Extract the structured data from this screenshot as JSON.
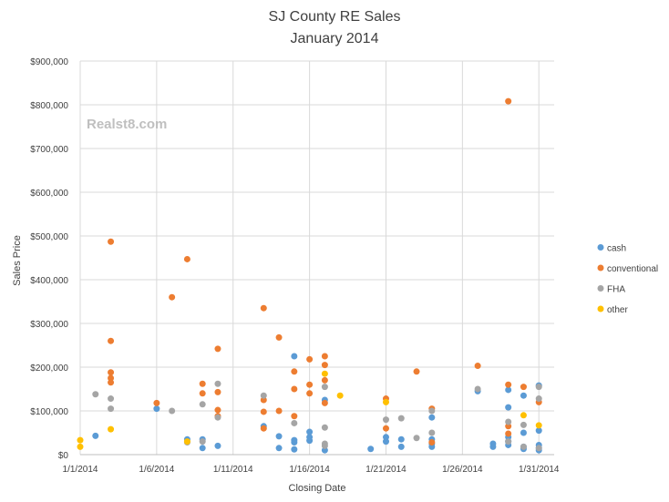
{
  "chart_data": {
    "type": "scatter",
    "title": [
      "SJ County RE Sales",
      "January 2014"
    ],
    "watermark": "Realst8.com",
    "xlabel": "Closing Date",
    "ylabel": "Sales Price",
    "xlim": [
      1,
      32
    ],
    "ylim": [
      0,
      900000
    ],
    "x_ticks": [
      {
        "value": 1,
        "label": "1/1/2014"
      },
      {
        "value": 6,
        "label": "1/6/2014"
      },
      {
        "value": 11,
        "label": "1/11/2014"
      },
      {
        "value": 16,
        "label": "1/16/2014"
      },
      {
        "value": 21,
        "label": "1/21/2014"
      },
      {
        "value": 26,
        "label": "1/26/2014"
      },
      {
        "value": 31,
        "label": "1/31/2014"
      }
    ],
    "y_ticks": [
      {
        "value": 0,
        "label": "$0"
      },
      {
        "value": 100000,
        "label": "$100,000"
      },
      {
        "value": 200000,
        "label": "$200,000"
      },
      {
        "value": 300000,
        "label": "$300,000"
      },
      {
        "value": 400000,
        "label": "$400,000"
      },
      {
        "value": 500000,
        "label": "$500,000"
      },
      {
        "value": 600000,
        "label": "$600,000"
      },
      {
        "value": 700000,
        "label": "$700,000"
      },
      {
        "value": 800000,
        "label": "$800,000"
      },
      {
        "value": 900000,
        "label": "$900,000"
      }
    ],
    "grid": true,
    "legend_position": "right",
    "series": [
      {
        "name": "cash",
        "color": "#5B9BD5",
        "points": [
          [
            2,
            43000
          ],
          [
            6,
            105000
          ],
          [
            8,
            35000
          ],
          [
            9,
            15000
          ],
          [
            9,
            35000
          ],
          [
            10,
            20000
          ],
          [
            13,
            65000
          ],
          [
            14,
            15000
          ],
          [
            14,
            42000
          ],
          [
            15,
            12000
          ],
          [
            15,
            28000
          ],
          [
            15,
            33000
          ],
          [
            15,
            225000
          ],
          [
            16,
            32000
          ],
          [
            16,
            40000
          ],
          [
            16,
            52000
          ],
          [
            17,
            10000
          ],
          [
            17,
            125000
          ],
          [
            20,
            13000
          ],
          [
            21,
            30000
          ],
          [
            21,
            40000
          ],
          [
            22,
            18000
          ],
          [
            22,
            35000
          ],
          [
            24,
            18000
          ],
          [
            24,
            25000
          ],
          [
            24,
            35000
          ],
          [
            24,
            85000
          ],
          [
            27,
            145000
          ],
          [
            28,
            18000
          ],
          [
            28,
            25000
          ],
          [
            29,
            22000
          ],
          [
            29,
            30000
          ],
          [
            29,
            40000
          ],
          [
            29,
            108000
          ],
          [
            29,
            148000
          ],
          [
            30,
            13000
          ],
          [
            30,
            18000
          ],
          [
            30,
            50000
          ],
          [
            30,
            135000
          ],
          [
            31,
            10000
          ],
          [
            31,
            15000
          ],
          [
            31,
            22000
          ],
          [
            31,
            55000
          ],
          [
            31,
            158000
          ]
        ]
      },
      {
        "name": "conventional",
        "color": "#ED7D31",
        "points": [
          [
            3,
            487000
          ],
          [
            3,
            260000
          ],
          [
            3,
            188000
          ],
          [
            3,
            175000
          ],
          [
            3,
            165000
          ],
          [
            6,
            118000
          ],
          [
            7,
            360000
          ],
          [
            8,
            447000
          ],
          [
            9,
            162000
          ],
          [
            9,
            140000
          ],
          [
            10,
            242000
          ],
          [
            10,
            143000
          ],
          [
            10,
            102000
          ],
          [
            10,
            88000
          ],
          [
            13,
            335000
          ],
          [
            13,
            125000
          ],
          [
            13,
            98000
          ],
          [
            13,
            60000
          ],
          [
            14,
            268000
          ],
          [
            14,
            100000
          ],
          [
            15,
            190000
          ],
          [
            15,
            150000
          ],
          [
            15,
            88000
          ],
          [
            16,
            218000
          ],
          [
            16,
            160000
          ],
          [
            16,
            140000
          ],
          [
            17,
            225000
          ],
          [
            17,
            205000
          ],
          [
            17,
            170000
          ],
          [
            17,
            118000
          ],
          [
            21,
            128000
          ],
          [
            21,
            60000
          ],
          [
            23,
            190000
          ],
          [
            24,
            105000
          ],
          [
            24,
            28000
          ],
          [
            27,
            203000
          ],
          [
            29,
            808000
          ],
          [
            29,
            160000
          ],
          [
            29,
            65000
          ],
          [
            29,
            48000
          ],
          [
            30,
            155000
          ],
          [
            31,
            120000
          ]
        ]
      },
      {
        "name": "FHA",
        "color": "#A5A5A5",
        "points": [
          [
            2,
            138000
          ],
          [
            3,
            128000
          ],
          [
            3,
            105000
          ],
          [
            7,
            100000
          ],
          [
            8,
            28000
          ],
          [
            9,
            115000
          ],
          [
            9,
            30000
          ],
          [
            10,
            162000
          ],
          [
            10,
            85000
          ],
          [
            13,
            135000
          ],
          [
            15,
            72000
          ],
          [
            17,
            155000
          ],
          [
            17,
            62000
          ],
          [
            17,
            25000
          ],
          [
            17,
            20000
          ],
          [
            21,
            80000
          ],
          [
            22,
            83000
          ],
          [
            23,
            38000
          ],
          [
            24,
            100000
          ],
          [
            24,
            50000
          ],
          [
            27,
            150000
          ],
          [
            29,
            75000
          ],
          [
            29,
            30000
          ],
          [
            30,
            68000
          ],
          [
            30,
            18000
          ],
          [
            31,
            155000
          ],
          [
            31,
            128000
          ],
          [
            31,
            15000
          ]
        ]
      },
      {
        "name": "other",
        "color": "#FFC000",
        "points": [
          [
            1,
            33000
          ],
          [
            1,
            18000
          ],
          [
            3,
            58000
          ],
          [
            8,
            30000
          ],
          [
            17,
            185000
          ],
          [
            18,
            135000
          ],
          [
            21,
            120000
          ],
          [
            30,
            90000
          ],
          [
            31,
            67000
          ]
        ]
      }
    ]
  }
}
